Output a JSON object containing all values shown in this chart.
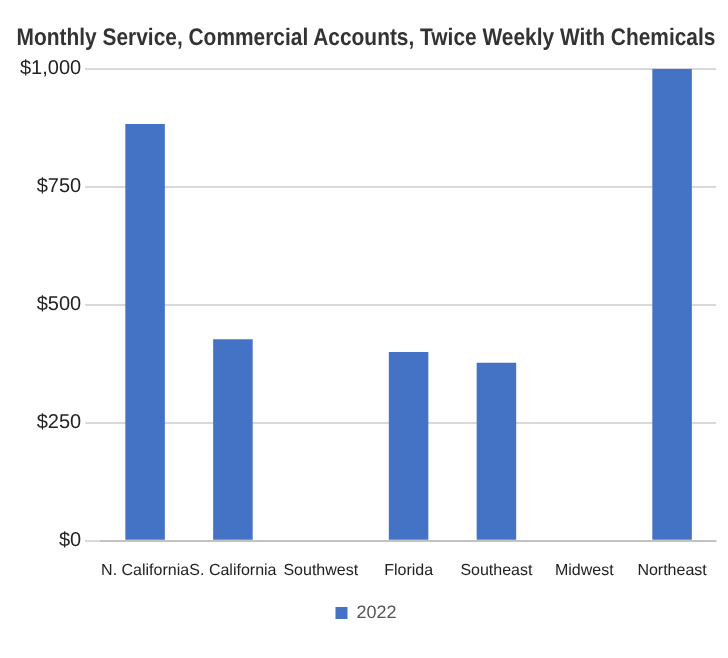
{
  "chart_data": {
    "type": "bar",
    "title": "Monthly Service, Commercial Accounts, Twice Weekly With Chemicals",
    "categories": [
      "N. California",
      "S. California",
      "Southwest",
      "Florida",
      "Southeast",
      "Midwest",
      "Northeast"
    ],
    "series": [
      {
        "name": "2022",
        "color": "#4472c4",
        "values": [
          883,
          427,
          null,
          400,
          377,
          null,
          1000
        ]
      }
    ],
    "ylim": [
      0,
      1000
    ],
    "yticks": [
      {
        "value": 0,
        "label": "$0"
      },
      {
        "value": 250,
        "label": "$250"
      },
      {
        "value": 500,
        "label": "$500"
      },
      {
        "value": 750,
        "label": "$750"
      },
      {
        "value": 1000,
        "label": "$1,000"
      }
    ],
    "grid": "y",
    "legend": "bottom"
  }
}
